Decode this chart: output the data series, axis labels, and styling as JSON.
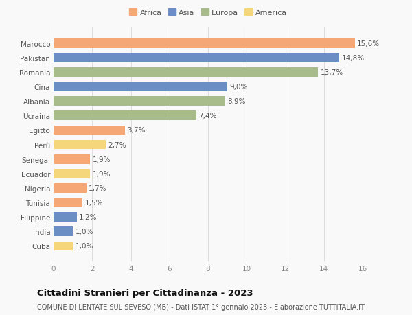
{
  "countries": [
    "Cuba",
    "India",
    "Filippine",
    "Tunisia",
    "Nigeria",
    "Ecuador",
    "Senegal",
    "Perù",
    "Egitto",
    "Ucraina",
    "Albania",
    "Cina",
    "Romania",
    "Pakistan",
    "Marocco"
  ],
  "values": [
    1.0,
    1.0,
    1.2,
    1.5,
    1.7,
    1.9,
    1.9,
    2.7,
    3.7,
    7.4,
    8.9,
    9.0,
    13.7,
    14.8,
    15.6
  ],
  "labels": [
    "1,0%",
    "1,0%",
    "1,2%",
    "1,5%",
    "1,7%",
    "1,9%",
    "1,9%",
    "2,7%",
    "3,7%",
    "7,4%",
    "8,9%",
    "9,0%",
    "13,7%",
    "14,8%",
    "15,6%"
  ],
  "colors": [
    "#F6D67B",
    "#6B8EC4",
    "#6B8EC4",
    "#F5A875",
    "#F5A875",
    "#F6D67B",
    "#F5A875",
    "#F6D67B",
    "#F5A875",
    "#A8BB8A",
    "#A8BB8A",
    "#6B8EC4",
    "#A8BB8A",
    "#6B8EC4",
    "#F5A875"
  ],
  "legend_labels": [
    "Africa",
    "Asia",
    "Europa",
    "America"
  ],
  "legend_colors": [
    "#F5A875",
    "#6B8EC4",
    "#A8BB8A",
    "#F6D67B"
  ],
  "title": "Cittadini Stranieri per Cittadinanza - 2023",
  "subtitle": "COMUNE DI LENTATE SUL SEVESO (MB) - Dati ISTAT 1° gennaio 2023 - Elaborazione TUTTITALIA.IT",
  "xlim": [
    0,
    16
  ],
  "xticks": [
    0,
    2,
    4,
    6,
    8,
    10,
    12,
    14,
    16
  ],
  "background_color": "#f9f9f9",
  "bar_height": 0.65,
  "title_fontsize": 9.5,
  "subtitle_fontsize": 7,
  "label_fontsize": 7.5,
  "tick_fontsize": 7.5,
  "legend_fontsize": 8
}
